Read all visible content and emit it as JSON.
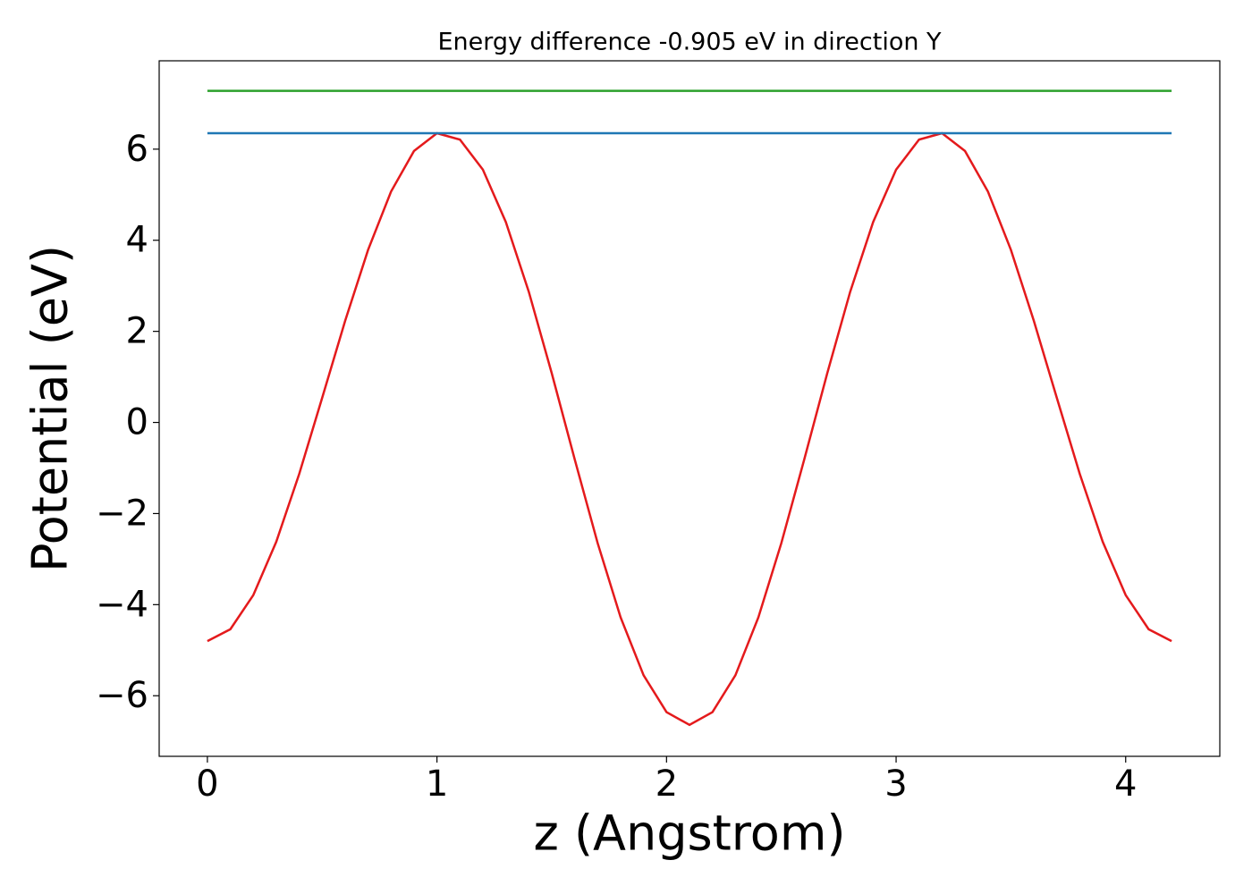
{
  "chart_data": {
    "type": "line",
    "title": "Energy difference -0.905 eV in direction Y",
    "xlabel": "z (Angstrom)",
    "ylabel": "Potential (eV)",
    "xlim": [
      -0.21,
      4.41
    ],
    "ylim": [
      -7.33,
      7.94
    ],
    "xticks": [
      0,
      1,
      2,
      3,
      4
    ],
    "yticks": [
      {
        "value": -6,
        "label": "−6"
      },
      {
        "value": -4,
        "label": "−4"
      },
      {
        "value": -2,
        "label": "−2"
      },
      0,
      2,
      4,
      6
    ],
    "series": [
      {
        "color": "#e41a1c",
        "x": [
          0,
          0.1,
          0.2,
          0.3,
          0.4,
          0.5,
          0.6,
          0.7,
          0.8,
          0.9,
          1.0,
          1.1,
          1.2,
          1.3,
          1.4,
          1.5,
          1.6,
          1.7,
          1.8,
          1.9,
          2.0,
          2.1,
          2.2,
          2.3,
          2.4,
          2.5,
          2.6,
          2.7,
          2.8,
          2.9,
          3.0,
          3.1,
          3.2,
          3.3,
          3.4,
          3.5,
          3.6,
          3.7,
          3.8,
          3.9,
          4.0,
          4.1,
          4.2
        ],
        "values": [
          -4.8,
          -4.54,
          -3.79,
          -2.62,
          -1.13,
          0.54,
          2.23,
          3.79,
          5.07,
          5.96,
          6.35,
          6.21,
          5.55,
          4.4,
          2.87,
          1.08,
          -0.81,
          -2.65,
          -4.28,
          -5.55,
          -6.36,
          -6.64,
          -6.36,
          -5.55,
          -4.28,
          -2.65,
          -0.81,
          1.08,
          2.87,
          4.4,
          5.55,
          6.21,
          6.35,
          5.96,
          5.07,
          3.79,
          2.23,
          0.54,
          -1.13,
          -2.62,
          -3.79,
          -4.54,
          -4.8
        ]
      },
      {
        "color": "#1f77b4",
        "x": [
          0,
          4.2
        ],
        "values": [
          6.35,
          6.35
        ]
      },
      {
        "color": "#2ca02c",
        "x": [
          0,
          4.2
        ],
        "values": [
          7.28,
          7.28
        ]
      }
    ]
  }
}
